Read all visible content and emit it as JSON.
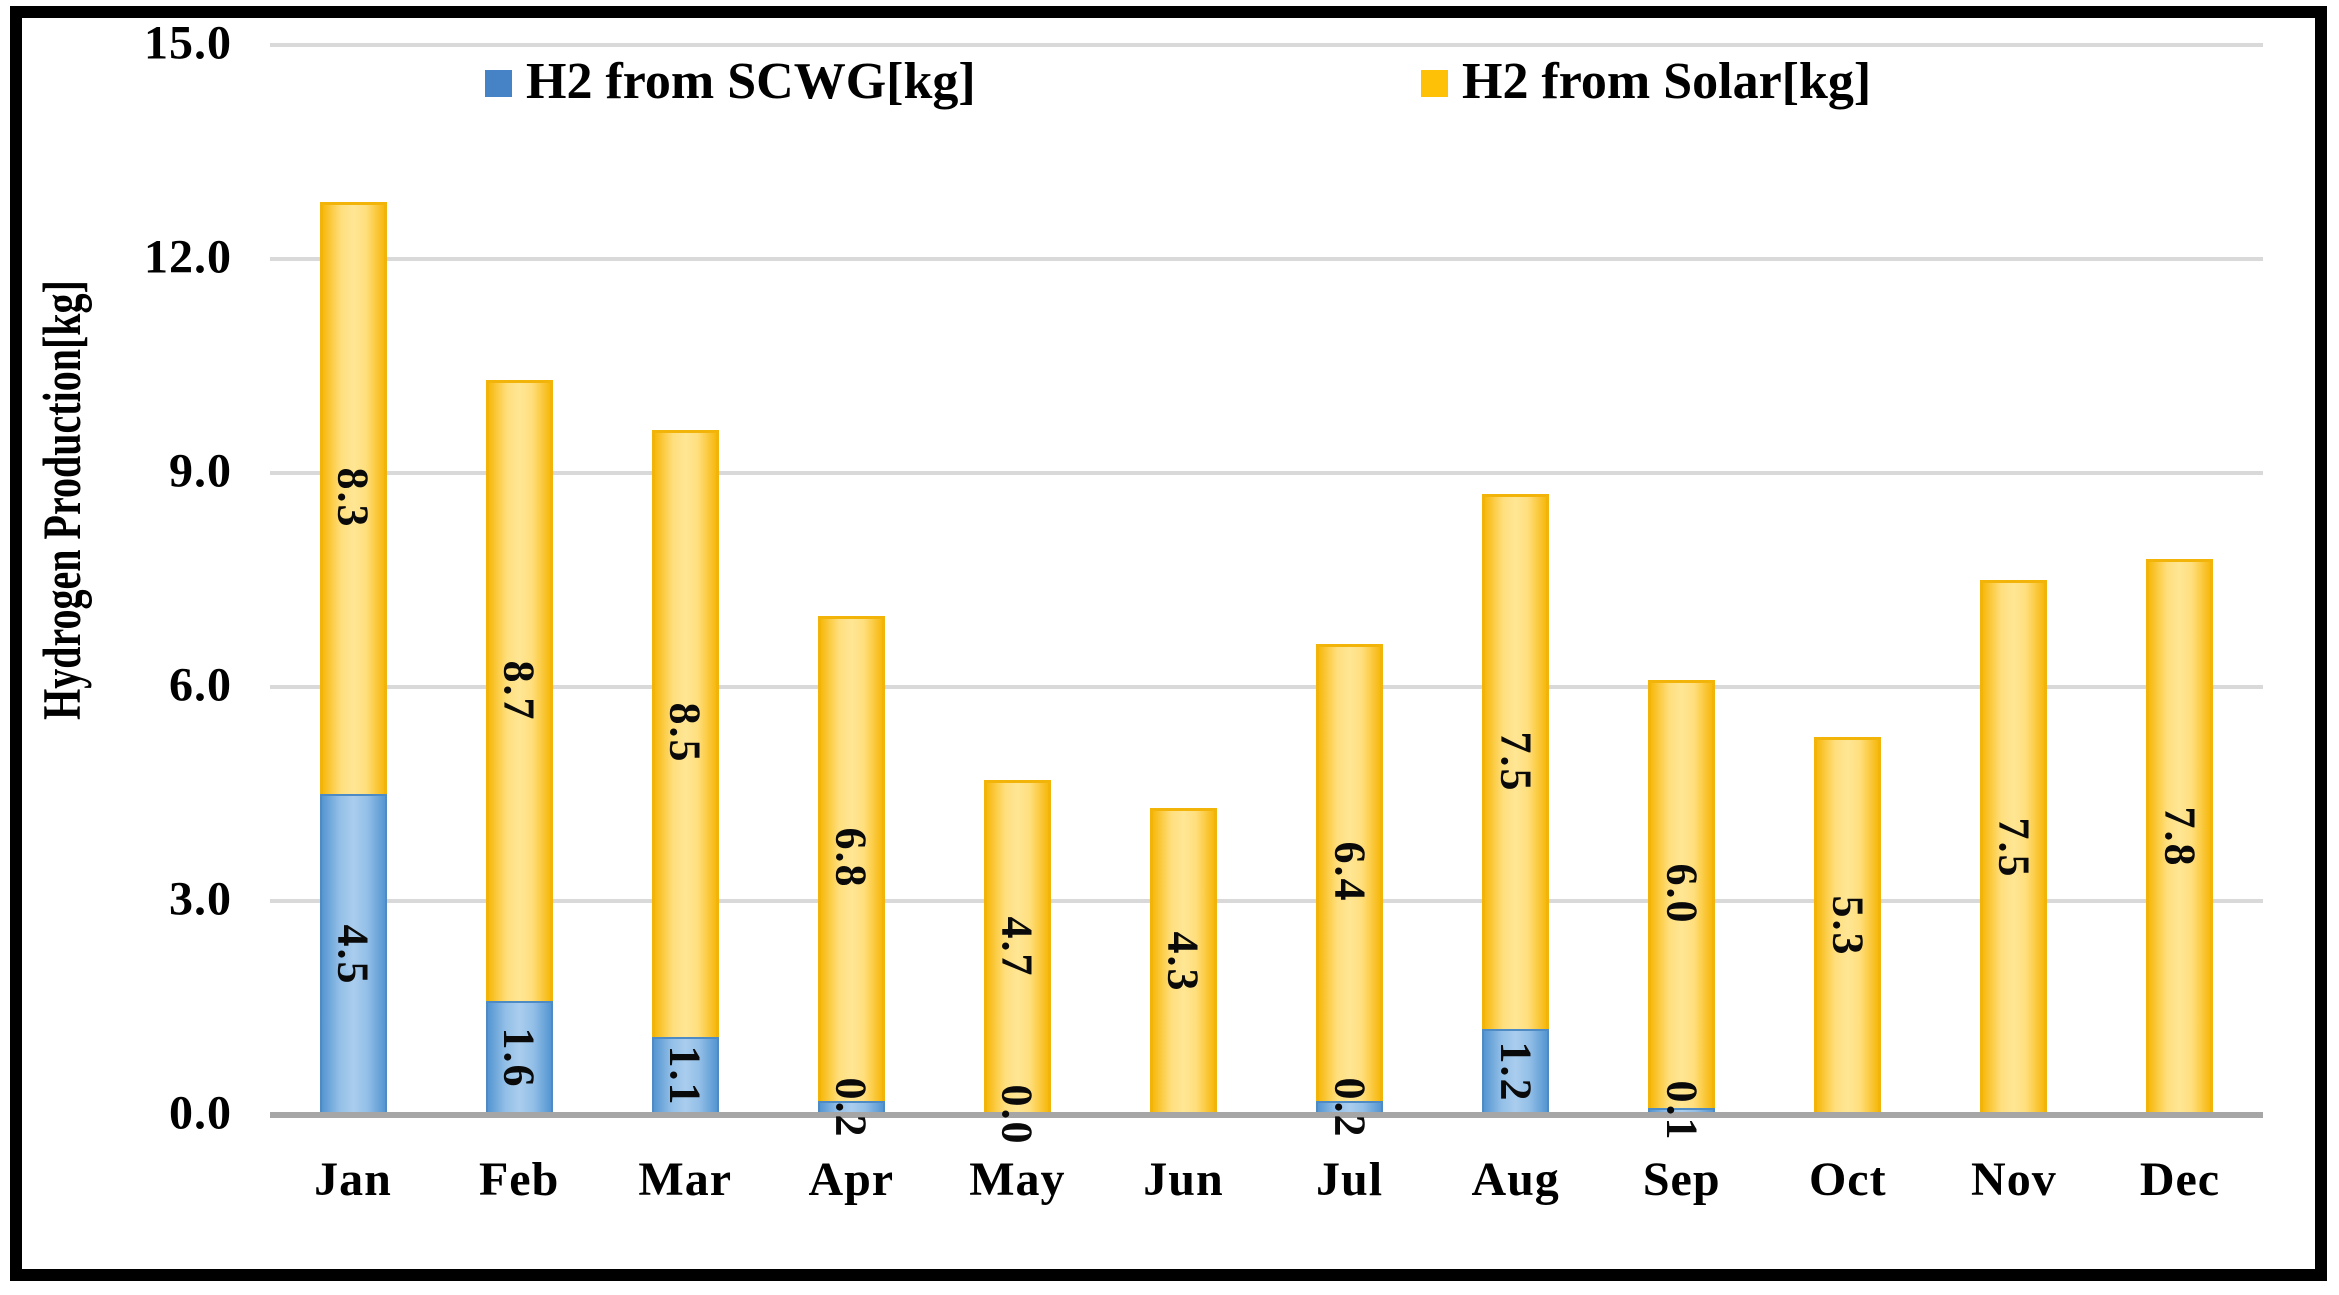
{
  "chart_data": {
    "type": "bar",
    "stacked": true,
    "title": "",
    "xlabel": "",
    "ylabel": "Hydrogen Production[kg]",
    "ylim": [
      0,
      15
    ],
    "grid": true,
    "legend_position": "top-inside",
    "categories": [
      "Jan",
      "Feb",
      "Mar",
      "Apr",
      "May",
      "Jun",
      "Jul",
      "Aug",
      "Sep",
      "Oct",
      "Nov",
      "Dec"
    ],
    "series": [
      {
        "name": "H2 from SCWG[kg]",
        "color": "#5B9BD5",
        "values": [
          4.5,
          1.6,
          1.1,
          0.2,
          0.0,
          0,
          0.2,
          1.2,
          0.1,
          0,
          0,
          0
        ],
        "labels": [
          "4.5",
          "1.6",
          "1.1",
          "0.2",
          "0.0",
          null,
          "0.2",
          "1.2",
          "0.1",
          null,
          null,
          null
        ]
      },
      {
        "name": "H2 from Solar[kg]",
        "color": "#FFC000",
        "values": [
          8.3,
          8.7,
          8.5,
          6.8,
          4.7,
          4.3,
          6.4,
          7.5,
          6.0,
          5.3,
          7.5,
          7.8
        ],
        "labels": [
          "8.3",
          "8.7",
          "8.5",
          "6.8",
          "4.7",
          "4.3",
          "6.4",
          "7.5",
          "6.0",
          "5.3",
          "7.5",
          "7.8"
        ]
      }
    ]
  },
  "y_axis": {
    "title": "Hydrogen Production[kg]",
    "ticks": [
      {
        "label": "15.0",
        "value": 15
      },
      {
        "label": "12.0",
        "value": 12
      },
      {
        "label": "9.0",
        "value": 9
      },
      {
        "label": "6.0",
        "value": 6
      },
      {
        "label": "3.0",
        "value": 3
      },
      {
        "label": "0.0",
        "value": 0
      }
    ]
  },
  "legend": {
    "items": [
      {
        "label": "H2 from SCWG[kg]",
        "color": "#4583C6"
      },
      {
        "label": "H2 from Solar[kg]",
        "color": "#FFC107"
      }
    ]
  },
  "colors": {
    "scwg_fill": "#5B9BD5",
    "solar_fill": "#FFC000",
    "gridline": "#D9D9D9",
    "axis_line": "#A6A6A6",
    "frame_border": "#000000",
    "background": "#FFFFFF",
    "label_text": "#000000"
  }
}
